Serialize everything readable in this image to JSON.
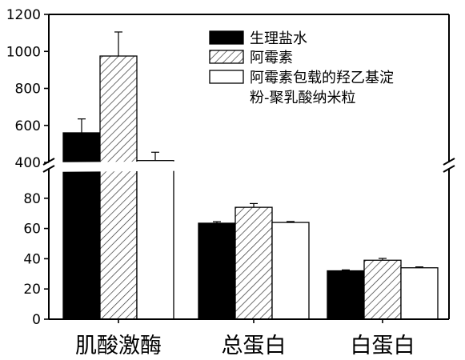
{
  "chart_data": {
    "type": "bar",
    "categories": [
      "肌酸激酶",
      "总蛋白",
      "白蛋白"
    ],
    "series": [
      {
        "name": "生理盐水",
        "values": [
          560,
          63.5,
          32
        ],
        "errors": [
          75,
          1,
          0.6
        ],
        "fill": "solid",
        "color": "#000000"
      },
      {
        "name": "阿霉素",
        "values": [
          975,
          74,
          39
        ],
        "errors": [
          130,
          2.5,
          1.2
        ],
        "fill": "hatch",
        "color": "#ffffff"
      },
      {
        "name": "阿霉素包载的羟乙基淀粉-聚乳酸纳米粒",
        "values": [
          410,
          64,
          34
        ],
        "errors": [
          45,
          0.6,
          0.6
        ],
        "fill": "empty",
        "color": "#ffffff"
      }
    ],
    "legend_lines": [
      [
        "生理盐水"
      ],
      [
        "阿霉素"
      ],
      [
        "阿霉素包载的羟乙基淀",
        "粉-聚乳酸纳米粒"
      ]
    ],
    "yaxis": {
      "broken": true,
      "lower": {
        "range": [
          0,
          100
        ],
        "ticks": [
          0,
          20,
          40,
          60,
          80
        ]
      },
      "upper": {
        "range": [
          400,
          1200
        ],
        "ticks": [
          400,
          600,
          800,
          1000,
          1200
        ]
      }
    },
    "legend_position": "top-right",
    "title": "",
    "xlabel": "",
    "ylabel": ""
  }
}
